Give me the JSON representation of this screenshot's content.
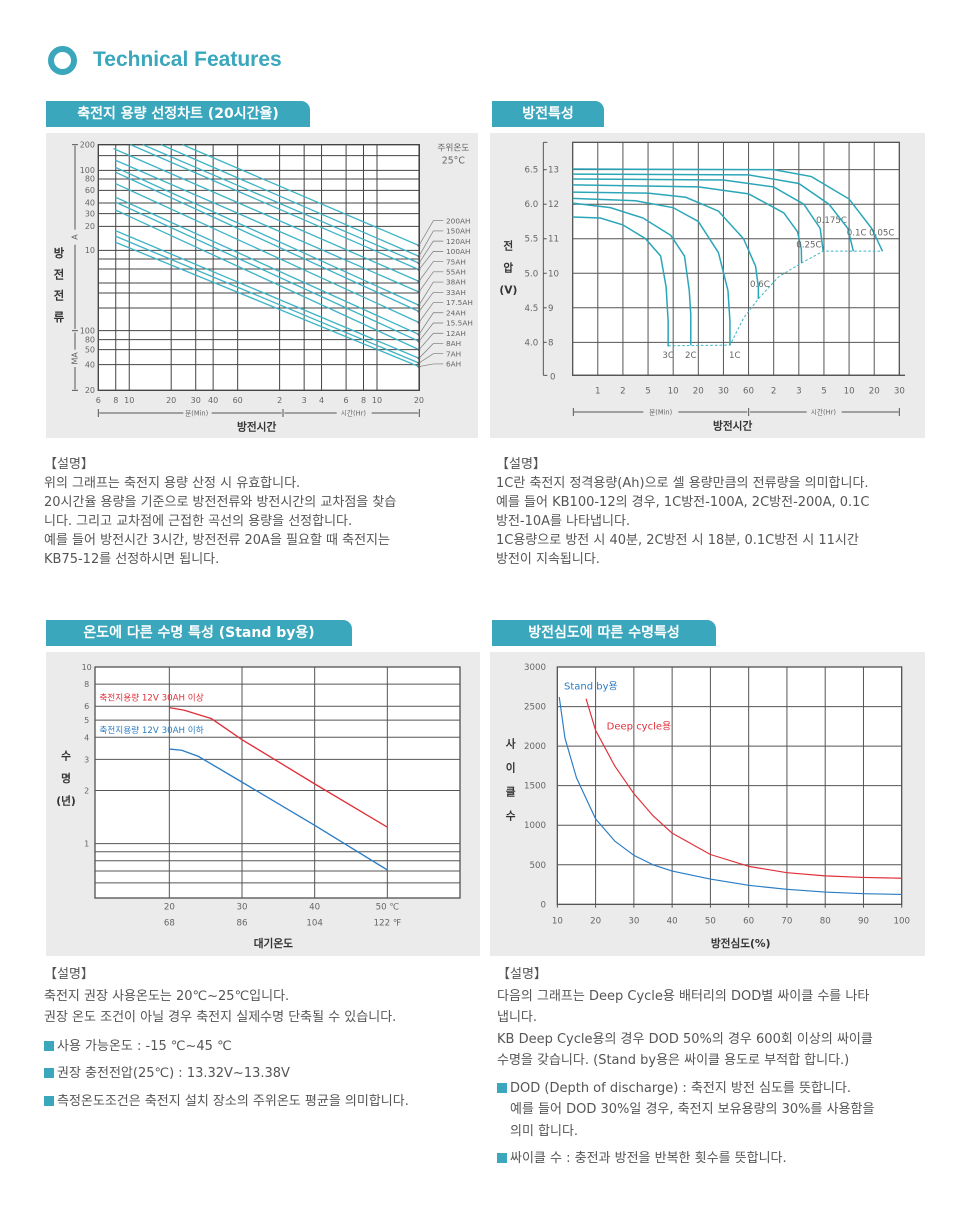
{
  "header": {
    "title": "Technical Features"
  },
  "colors": {
    "accent": "#3aa7bd",
    "curve": "#3fb4c6",
    "red": "#e0303a",
    "blue": "#2a7cc4",
    "panel": "#ebebeb"
  },
  "sections": [
    {
      "title": "축전지 용량 선정차트 (20시간율)",
      "description": {
        "heading": "【설명】",
        "lines": [
          "위의 그래프는 축전지 용량 산정 시 유효합니다.",
          "20시간율 용량을 기준으로 방전전류와 방전시간의 교차점을 찾습",
          "니다. 그리고 교차점에 근접한 곡선의 용량을 선정합니다.",
          "예를 들어 방전시간 3시간, 방전전류 20A을 필요할 때 축전지는",
          "KB75-12를 선정하시면 됩니다."
        ]
      }
    },
    {
      "title": "방전특성",
      "description": {
        "heading": "【설명】",
        "lines": [
          "1C란 축전지 정격용량(Ah)으로 셀 용량만큼의 전류량을 의미합니다.",
          "예를 들어 KB100-12의 경우, 1C방전-100A, 2C방전-200A, 0.1C",
          "방전-10A를 나타냅니다.",
          "1C용량으로 방전 시 40분, 2C방전 시 18분, 0.1C방전 시 11시간",
          "방전이 지속됩니다."
        ]
      }
    },
    {
      "title": "온도에 다른 수명 특성 (Stand by용)",
      "description": {
        "heading": "【설명】",
        "lines": [
          "축전지 권장 사용온도는 20℃~25℃입니다.",
          "권장 온도 조건이 아닐 경우 축전지 실제수명 단축될 수 있습니다."
        ],
        "bullets": [
          {
            "lines": [
              "사용 가능온도 : -15 ℃~45 ℃"
            ]
          },
          {
            "lines": [
              "권장 충전전압(25℃) : 13.32V~13.38V"
            ]
          },
          {
            "lines": [
              "측정온도조건은 축전지 설치 장소의 주위온도 평균을 의미합니다."
            ]
          }
        ]
      }
    },
    {
      "title": "방전심도에 따른 수명특성",
      "description": {
        "heading": "【설명】",
        "lines": [
          "다음의 그래프는 Deep Cycle용 배터리의 DOD별 싸이클 수를 나타",
          "냅니다.",
          "KB Deep Cycle용의 경우 DOD 50%의 경우 600회 이상의 싸이클",
          "수명을 갖습니다. (Stand by용은 싸이클 용도로 부적합 합니다.)"
        ],
        "bullets": [
          {
            "lines": [
              "DOD (Depth of discharge) : 축전지 방전 심도를 뜻합니다.",
              "예를 들어 DOD 30%일 경우, 축전지 보유용량의 30%를 사용함을",
              "의미 합니다."
            ]
          },
          {
            "lines": [
              "싸이클 수 : 충전과 방전을 반복한 횟수를 뜻합니다."
            ]
          }
        ]
      }
    }
  ],
  "chart_data": [
    {
      "type": "line",
      "title": "축전지 용량 선정차트 (20시간율)",
      "xlabel": "방전시간",
      "ylabel": [
        "방",
        "전",
        "전",
        "류"
      ],
      "x_scale": "log",
      "x_unit": "minutes",
      "x_range_labels": {
        "min": "분(Min)",
        "hr": "시간(Hr)"
      },
      "y_unit_labels": {
        "a": "A",
        "ma": "MA"
      },
      "annotation": {
        "line1": "주위온도",
        "line2": "25°C"
      },
      "x_ticks": [
        {
          "v": 6,
          "l": "6"
        },
        {
          "v": 8,
          "l": "8"
        },
        {
          "v": 10,
          "l": "10"
        },
        {
          "v": 20,
          "l": "20"
        },
        {
          "v": 30,
          "l": "30"
        },
        {
          "v": 40,
          "l": "40"
        },
        {
          "v": 60,
          "l": "60"
        },
        {
          "v": 120,
          "l": "2"
        },
        {
          "v": 180,
          "l": "3"
        },
        {
          "v": 240,
          "l": "4"
        },
        {
          "v": 360,
          "l": "6"
        },
        {
          "v": 480,
          "l": "8"
        },
        {
          "v": 600,
          "l": "10"
        },
        {
          "v": 1200,
          "l": "20"
        }
      ],
      "y_ticks": [
        {
          "v": 200,
          "l": "200"
        },
        {
          "v": 100,
          "l": "100"
        },
        {
          "v": 80,
          "l": "80"
        },
        {
          "v": 60,
          "l": "60"
        },
        {
          "v": 40,
          "l": "40"
        },
        {
          "v": 30,
          "l": "30"
        },
        {
          "v": 20,
          "l": "20"
        },
        {
          "v": 10,
          "l": "10"
        },
        {
          "v": 0.1,
          "l": "100"
        },
        {
          "v": 0.08,
          "l": "80"
        },
        {
          "v": 0.05,
          "l": "50"
        },
        {
          "v": 0.04,
          "l": "40"
        },
        {
          "v": 0.02,
          "l": "20"
        }
      ],
      "series": [
        {
          "name": "200AH",
          "points": [
            [
              24.1,
              200
            ],
            [
              1200,
              11.5
            ]
          ]
        },
        {
          "name": "150AH",
          "points": [
            [
              16.9,
              200
            ],
            [
              1200,
              7.1
            ]
          ]
        },
        {
          "name": "120AH",
          "points": [
            [
              12.5,
              200
            ],
            [
              1200,
              4.8
            ]
          ]
        },
        {
          "name": "100AH",
          "points": [
            [
              10.2,
              200
            ],
            [
              1200,
              3.3
            ]
          ]
        },
        {
          "name": "75AH",
          "points": [
            [
              7.7,
              180
            ],
            [
              1200,
              1.69
            ]
          ]
        },
        {
          "name": "55AH",
          "points": [
            [
              8,
              131
            ],
            [
              1200,
              0.92
            ]
          ]
        },
        {
          "name": "38AH",
          "points": [
            [
              8,
              108
            ],
            [
              1200,
              0.43
            ]
          ]
        },
        {
          "name": "33AH",
          "points": [
            [
              8,
              95
            ],
            [
              1200,
              0.3
            ]
          ]
        },
        {
          "name": "17.5AH",
          "points": [
            [
              8,
              71
            ],
            [
              1200,
              0.16
            ]
          ]
        },
        {
          "name": "24AH",
          "points": [
            [
              8,
              48
            ],
            [
              1200,
              0.091
            ]
          ]
        },
        {
          "name": "15.5AH",
          "points": [
            [
              8,
              41
            ],
            [
              1200,
              0.074
            ]
          ]
        },
        {
          "name": "12AH",
          "points": [
            [
              8,
              33
            ],
            [
              1200,
              0.05
            ]
          ]
        },
        {
          "name": "8AH",
          "points": [
            [
              8,
              17.6
            ],
            [
              1200,
              0.044
            ]
          ]
        },
        {
          "name": "7AH",
          "points": [
            [
              8,
              15
            ],
            [
              1200,
              0.041
            ]
          ]
        },
        {
          "name": "6AH",
          "points": [
            [
              8,
              12.6
            ],
            [
              1200,
              0.038
            ]
          ]
        }
      ]
    },
    {
      "type": "line",
      "title": "방전특성",
      "xlabel": "방전시간",
      "ylabel": [
        "전",
        "압",
        "(V)"
      ],
      "x_range_labels": {
        "min": "분(Min)",
        "hr": "시간(Hr)"
      },
      "x_ticks": [
        {
          "i": 1,
          "l": "1"
        },
        {
          "i": 2,
          "l": "2"
        },
        {
          "i": 3,
          "l": "5"
        },
        {
          "i": 4,
          "l": "10"
        },
        {
          "i": 5,
          "l": "20"
        },
        {
          "i": 6,
          "l": "30"
        },
        {
          "i": 7,
          "l": "60"
        },
        {
          "i": 8,
          "l": "2"
        },
        {
          "i": 9,
          "l": "3"
        },
        {
          "i": 10,
          "l": "5"
        },
        {
          "i": 11,
          "l": "10"
        },
        {
          "i": 12,
          "l": "20"
        },
        {
          "i": 13,
          "l": "30"
        }
      ],
      "y_ticks": [
        {
          "v": 13,
          "cell": "6.5",
          "battery": "13"
        },
        {
          "v": 12,
          "cell": "6.0",
          "battery": "12"
        },
        {
          "v": 11,
          "cell": "5.5",
          "battery": "11"
        },
        {
          "v": 10,
          "cell": "5.0",
          "battery": "10"
        },
        {
          "v": 9,
          "cell": "4.5",
          "battery": "9"
        },
        {
          "v": 8,
          "cell": "4.0",
          "battery": "8"
        }
      ],
      "y_zero_label": "0",
      "series": [
        {
          "name": "3C",
          "points": [
            [
              0,
              11.63
            ],
            [
              1.1,
              11.6
            ],
            [
              2.0,
              11.4
            ],
            [
              2.9,
              11.0
            ],
            [
              3.5,
              10.5
            ],
            [
              3.72,
              9.6
            ],
            [
              3.8,
              8.6
            ],
            [
              3.8,
              7.88
            ]
          ]
        },
        {
          "name": "2C",
          "points": [
            [
              0,
              12.03
            ],
            [
              1.5,
              11.9
            ],
            [
              2.8,
              11.6
            ],
            [
              3.9,
              11.1
            ],
            [
              4.45,
              10.5
            ],
            [
              4.64,
              9.5
            ],
            [
              4.7,
              8.8
            ],
            [
              4.7,
              7.92
            ]
          ]
        },
        {
          "name": "1C",
          "points": [
            [
              0,
              12.17
            ],
            [
              2.5,
              12.1
            ],
            [
              4.0,
              11.9
            ],
            [
              5.0,
              11.5
            ],
            [
              5.8,
              10.6
            ],
            [
              6.18,
              9.5
            ],
            [
              6.26,
              8.6
            ],
            [
              6.26,
              7.92
            ]
          ]
        },
        {
          "name": "0.6C",
          "points": [
            [
              0,
              12.35
            ],
            [
              3,
              12.32
            ],
            [
              4.5,
              12.2
            ],
            [
              5.8,
              11.8
            ],
            [
              6.8,
              11.0
            ],
            [
              7.28,
              10.2
            ],
            [
              7.39,
              9.6
            ],
            [
              7.39,
              9.26
            ]
          ]
        },
        {
          "name": "0.25C",
          "points": [
            [
              0,
              12.56
            ],
            [
              5,
              12.5
            ],
            [
              7.0,
              12.3
            ],
            [
              8.4,
              11.75
            ],
            [
              8.95,
              11.2
            ],
            [
              9.1,
              10.7
            ],
            [
              9.11,
              10.3
            ]
          ]
        },
        {
          "name": "0.175C",
          "points": [
            [
              0,
              12.73
            ],
            [
              6,
              12.7
            ],
            [
              8,
              12.5
            ],
            [
              9.2,
              12.0
            ],
            [
              9.85,
              11.3
            ],
            [
              9.97,
              10.64
            ]
          ]
        },
        {
          "name": "0.1C",
          "points": [
            [
              0,
              12.87
            ],
            [
              7,
              12.85
            ],
            [
              9,
              12.6
            ],
            [
              10.2,
              12.0
            ],
            [
              10.95,
              11.3
            ],
            [
              11.17,
              10.64
            ]
          ]
        },
        {
          "name": "0.05C",
          "points": [
            [
              0,
              13.02
            ],
            [
              8,
              13.0
            ],
            [
              9.5,
              12.8
            ],
            [
              11,
              12.15
            ],
            [
              11.9,
              11.3
            ],
            [
              12.33,
              10.64
            ]
          ]
        }
      ],
      "end_voltage_line": [
        [
          3.8,
          7.9
        ],
        [
          6.26,
          7.92
        ],
        [
          6.8,
          8.7
        ],
        [
          7.39,
          9.26
        ],
        [
          8.2,
          9.9
        ],
        [
          9.11,
          10.3
        ],
        [
          9.97,
          10.64
        ],
        [
          12.33,
          10.64
        ]
      ]
    },
    {
      "type": "line",
      "title": "온도에 다른 수명 특성 (Stand by용)",
      "xlabel": "대기온도",
      "ylabel": [
        "수",
        "명",
        "(년)"
      ],
      "y_scale": "log",
      "xlim": [
        10,
        60
      ],
      "ylim": [
        0.5,
        10
      ],
      "x_ticks": [
        {
          "v": 20,
          "c": "20",
          "f": "68"
        },
        {
          "v": 30,
          "c": "30",
          "f": "86"
        },
        {
          "v": 40,
          "c": "40",
          "f": "104"
        },
        {
          "v": 50,
          "c": "50 ℃",
          "f": "122 ℉"
        }
      ],
      "y_ticks": [
        {
          "v": 10,
          "l": "10"
        },
        {
          "v": 8,
          "l": "8"
        },
        {
          "v": 6,
          "l": "6"
        },
        {
          "v": 5,
          "l": "5"
        },
        {
          "v": 4,
          "l": "4"
        },
        {
          "v": 3,
          "l": "3"
        },
        {
          "v": 2,
          "l": "2"
        },
        {
          "v": 1,
          "l": "1"
        }
      ],
      "series": [
        {
          "name": "축전지용량 12V 30AH 이상",
          "color": "#e0303a",
          "points": [
            [
              20,
              5.89
            ],
            [
              22,
              5.7
            ],
            [
              25.8,
              5.1
            ],
            [
              30,
              3.88
            ],
            [
              40,
              2.18
            ],
            [
              50,
              1.24
            ]
          ]
        },
        {
          "name": "축전지용량 12V 30AH 이하",
          "color": "#2a7cc4",
          "points": [
            [
              20,
              3.43
            ],
            [
              21.7,
              3.38
            ],
            [
              24,
              3.12
            ],
            [
              30,
              2.23
            ],
            [
              40,
              1.27
            ],
            [
              50,
              0.71
            ]
          ]
        }
      ]
    },
    {
      "type": "line",
      "title": "방전심도에 따른 수명특성",
      "xlabel": "방전심도(%)",
      "ylabel": [
        "사",
        "이",
        "클",
        "수"
      ],
      "xlim": [
        10,
        100
      ],
      "ylim": [
        0,
        3000
      ],
      "x_ticks": [
        "10",
        "20",
        "30",
        "40",
        "50",
        "60",
        "70",
        "80",
        "90",
        "100"
      ],
      "y_ticks": [
        "0",
        "500",
        "1000",
        "1500",
        "2000",
        "2500",
        "3000"
      ],
      "series": [
        {
          "name": "Stand by용",
          "color": "#2a7cc4",
          "points": [
            [
              10.5,
              2620
            ],
            [
              12,
              2100
            ],
            [
              15,
              1600
            ],
            [
              20,
              1080
            ],
            [
              25,
              800
            ],
            [
              30,
              620
            ],
            [
              35,
              500
            ],
            [
              40,
              420
            ],
            [
              50,
              320
            ],
            [
              60,
              240
            ],
            [
              70,
              190
            ],
            [
              80,
              155
            ],
            [
              90,
              135
            ],
            [
              100,
              125
            ]
          ]
        },
        {
          "name": "Deep cycle용",
          "color": "#e0303a",
          "points": [
            [
              17.5,
              2600
            ],
            [
              20,
              2200
            ],
            [
              25,
              1750
            ],
            [
              30,
              1400
            ],
            [
              35,
              1120
            ],
            [
              40,
              900
            ],
            [
              50,
              630
            ],
            [
              60,
              480
            ],
            [
              70,
              400
            ],
            [
              80,
              360
            ],
            [
              90,
              340
            ],
            [
              100,
              330
            ]
          ]
        }
      ]
    }
  ]
}
